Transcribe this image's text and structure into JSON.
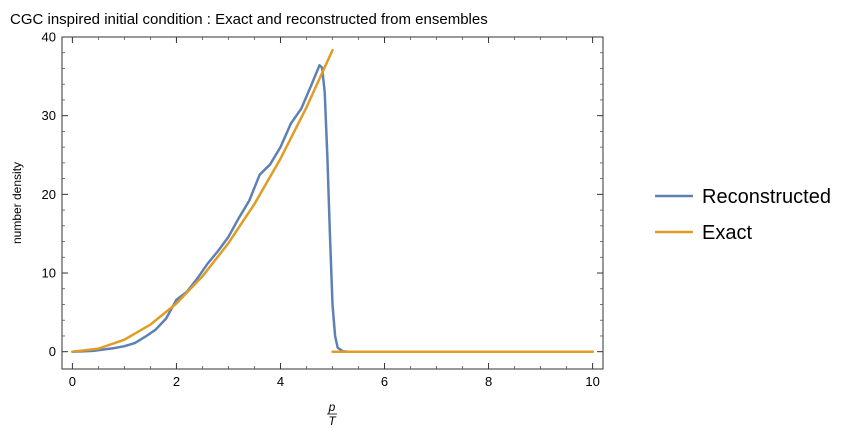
{
  "chart_data": {
    "type": "line",
    "title": "CGC inspired initial condition : Exact and reconstructed from ensembles",
    "xlabel_num": "p",
    "xlabel_den": "T",
    "ylabel": "number density",
    "xlim": [
      -0.2,
      10.2
    ],
    "ylim": [
      -2.2,
      40
    ],
    "x_ticks": [
      0,
      2,
      4,
      6,
      8,
      10
    ],
    "y_ticks": [
      0,
      10,
      20,
      30,
      40
    ],
    "legend_position": "right",
    "series": [
      {
        "name": "Reconstructed",
        "color": "#5e81b5",
        "points": [
          [
            0,
            0
          ],
          [
            0.4,
            0.1
          ],
          [
            0.8,
            0.45
          ],
          [
            1.0,
            0.7
          ],
          [
            1.2,
            1.1
          ],
          [
            1.4,
            1.9
          ],
          [
            1.6,
            2.8
          ],
          [
            1.8,
            4.2
          ],
          [
            2.0,
            6.6
          ],
          [
            2.2,
            7.6
          ],
          [
            2.4,
            9.3
          ],
          [
            2.6,
            11.2
          ],
          [
            2.8,
            12.8
          ],
          [
            3.0,
            14.6
          ],
          [
            3.2,
            17.0
          ],
          [
            3.4,
            19.2
          ],
          [
            3.6,
            22.5
          ],
          [
            3.8,
            23.8
          ],
          [
            4.0,
            26.0
          ],
          [
            4.2,
            29.0
          ],
          [
            4.4,
            30.9
          ],
          [
            4.6,
            34.0
          ],
          [
            4.7,
            35.6
          ],
          [
            4.75,
            36.4
          ],
          [
            4.8,
            36.1
          ],
          [
            4.85,
            33.0
          ],
          [
            4.9,
            25.0
          ],
          [
            4.95,
            15.0
          ],
          [
            5.0,
            6.0
          ],
          [
            5.05,
            2.0
          ],
          [
            5.1,
            0.5
          ],
          [
            5.2,
            0.05
          ],
          [
            5.3,
            0
          ],
          [
            10,
            0
          ]
        ]
      },
      {
        "name": "Exact",
        "color": "#e19c24",
        "points": [
          [
            0,
            0
          ],
          [
            0.5,
            0.39
          ],
          [
            1.0,
            1.53
          ],
          [
            1.5,
            3.45
          ],
          [
            2.0,
            6.13
          ],
          [
            2.5,
            9.58
          ],
          [
            3.0,
            13.8
          ],
          [
            3.5,
            18.78
          ],
          [
            4.0,
            24.53
          ],
          [
            4.5,
            31.05
          ],
          [
            5.0,
            38.33
          ],
          [
            5.001,
            0
          ],
          [
            10,
            0
          ]
        ]
      }
    ]
  }
}
